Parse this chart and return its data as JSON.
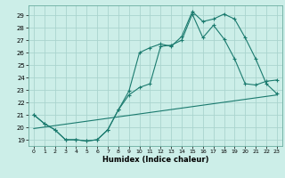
{
  "title": "",
  "xlabel": "Humidex (Indice chaleur)",
  "background_color": "#cceee8",
  "grid_color": "#aad4ce",
  "line_color": "#1a7a6e",
  "xlim": [
    -0.5,
    23.5
  ],
  "ylim": [
    18.5,
    29.8
  ],
  "yticks": [
    19,
    20,
    21,
    22,
    23,
    24,
    25,
    26,
    27,
    28,
    29
  ],
  "xticks": [
    0,
    1,
    2,
    3,
    4,
    5,
    6,
    7,
    8,
    9,
    10,
    11,
    12,
    13,
    14,
    15,
    16,
    17,
    18,
    19,
    20,
    21,
    22,
    23
  ],
  "line1_x": [
    0,
    1,
    2,
    3,
    4,
    5,
    6,
    7,
    8,
    9,
    10,
    11,
    12,
    13,
    14,
    15,
    16,
    17,
    18,
    19,
    20,
    21,
    22,
    23
  ],
  "line1_y": [
    21.0,
    20.3,
    19.8,
    19.0,
    19.0,
    18.9,
    19.0,
    19.8,
    21.4,
    22.9,
    26.0,
    26.4,
    26.7,
    26.5,
    27.3,
    29.3,
    28.5,
    28.7,
    29.1,
    28.7,
    27.2,
    25.5,
    23.5,
    22.7
  ],
  "line2_x": [
    0,
    1,
    2,
    3,
    4,
    5,
    6,
    7,
    8,
    9,
    10,
    11,
    12,
    13,
    14,
    15,
    16,
    17,
    18,
    19,
    20,
    21,
    22,
    23
  ],
  "line2_y": [
    21.0,
    20.3,
    19.8,
    19.0,
    19.0,
    18.9,
    19.0,
    19.8,
    21.4,
    22.6,
    23.2,
    23.5,
    26.5,
    26.6,
    27.0,
    29.1,
    27.2,
    28.2,
    27.1,
    25.5,
    23.5,
    23.4,
    23.7,
    23.8
  ],
  "line3_x": [
    0,
    23
  ],
  "line3_y": [
    19.9,
    22.6
  ]
}
